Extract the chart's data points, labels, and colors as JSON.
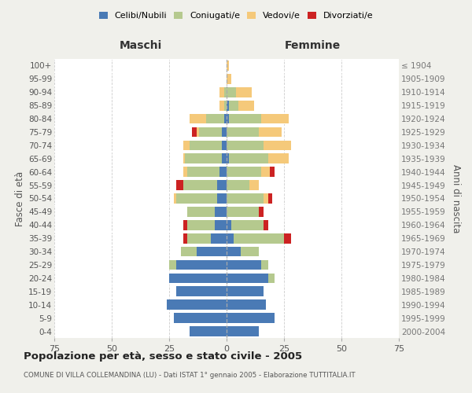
{
  "age_groups": [
    "0-4",
    "5-9",
    "10-14",
    "15-19",
    "20-24",
    "25-29",
    "30-34",
    "35-39",
    "40-44",
    "45-49",
    "50-54",
    "55-59",
    "60-64",
    "65-69",
    "70-74",
    "75-79",
    "80-84",
    "85-89",
    "90-94",
    "95-99",
    "100+"
  ],
  "birth_years": [
    "2000-2004",
    "1995-1999",
    "1990-1994",
    "1985-1989",
    "1980-1984",
    "1975-1979",
    "1970-1974",
    "1965-1969",
    "1960-1964",
    "1955-1959",
    "1950-1954",
    "1945-1949",
    "1940-1944",
    "1935-1939",
    "1930-1934",
    "1925-1929",
    "1920-1924",
    "1915-1919",
    "1910-1914",
    "1905-1909",
    "≤ 1904"
  ],
  "colors": {
    "celibi": "#4a7ab5",
    "coniugati": "#b5c98e",
    "vedovi": "#f5c97a",
    "divorziati": "#cc2222"
  },
  "maschi": {
    "celibi": [
      16,
      23,
      26,
      22,
      25,
      22,
      13,
      7,
      5,
      5,
      4,
      4,
      3,
      2,
      2,
      2,
      1,
      0,
      0,
      0,
      0
    ],
    "coniugati": [
      0,
      0,
      0,
      0,
      0,
      3,
      7,
      10,
      12,
      12,
      18,
      15,
      14,
      16,
      14,
      10,
      8,
      1,
      1,
      0,
      0
    ],
    "vedovi": [
      0,
      0,
      0,
      0,
      0,
      0,
      0,
      0,
      0,
      0,
      1,
      0,
      2,
      1,
      3,
      1,
      7,
      2,
      2,
      0,
      0
    ],
    "divorziati": [
      0,
      0,
      0,
      0,
      0,
      0,
      0,
      2,
      2,
      0,
      0,
      3,
      0,
      0,
      0,
      2,
      0,
      0,
      0,
      0,
      0
    ]
  },
  "femmine": {
    "celibi": [
      14,
      21,
      17,
      16,
      18,
      15,
      6,
      3,
      2,
      0,
      0,
      0,
      0,
      1,
      0,
      0,
      1,
      1,
      0,
      0,
      0
    ],
    "coniugati": [
      0,
      0,
      0,
      0,
      3,
      3,
      8,
      22,
      14,
      14,
      16,
      10,
      15,
      17,
      16,
      14,
      14,
      4,
      4,
      0,
      0
    ],
    "vedovi": [
      0,
      0,
      0,
      0,
      0,
      0,
      0,
      0,
      0,
      0,
      2,
      4,
      4,
      9,
      12,
      10,
      12,
      7,
      7,
      2,
      1
    ],
    "divorziati": [
      0,
      0,
      0,
      0,
      0,
      0,
      0,
      3,
      2,
      2,
      2,
      0,
      2,
      0,
      0,
      0,
      0,
      0,
      0,
      0,
      0
    ]
  },
  "xlim": 75,
  "title": "Popolazione per età, sesso e stato civile - 2005",
  "subtitle": "COMUNE DI VILLA COLLEMANDINA (LU) - Dati ISTAT 1° gennaio 2005 - Elaborazione TUTTITALIA.IT",
  "xlabel_left": "Maschi",
  "xlabel_right": "Femmine",
  "ylabel_left": "Fasce di età",
  "ylabel_right": "Anni di nascita",
  "bg_color": "#f0f0eb",
  "plot_bg": "#ffffff",
  "grid_color": "#cccccc"
}
